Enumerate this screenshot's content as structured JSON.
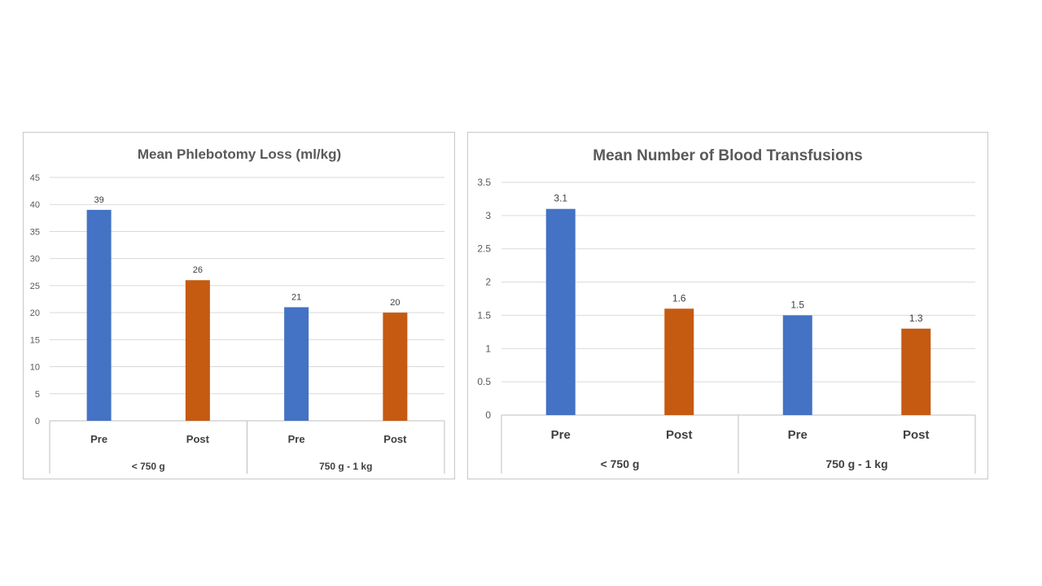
{
  "colors": {
    "pre": "#4472C4",
    "post": "#C55A11",
    "grid": "#d9d9d9",
    "axis": "#bfbfbf"
  },
  "chart_data": [
    {
      "type": "bar",
      "title": "Mean Phlebotomy Loss (ml/kg)",
      "groups": [
        "< 750 g",
        "750 g - 1 kg"
      ],
      "categories": [
        "Pre",
        "Post",
        "Pre",
        "Post"
      ],
      "values": [
        39,
        26,
        21,
        20
      ],
      "data_labels": [
        "39",
        "26",
        "21",
        "20"
      ],
      "ylim": [
        0,
        45
      ],
      "yticks": [
        "0",
        "5",
        "10",
        "15",
        "20",
        "25",
        "30",
        "35",
        "40",
        "45"
      ],
      "grid": true
    },
    {
      "type": "bar",
      "title": "Mean Number of Blood Transfusions",
      "groups": [
        "< 750 g",
        "750 g - 1 kg"
      ],
      "categories": [
        "Pre",
        "Post",
        "Pre",
        "Post"
      ],
      "values": [
        3.1,
        1.6,
        1.5,
        1.3
      ],
      "data_labels": [
        "3.1",
        "1.6",
        "1.5",
        "1.3"
      ],
      "ylim": [
        0,
        3.5
      ],
      "yticks": [
        "0",
        "0.5",
        "1",
        "1.5",
        "2",
        "2.5",
        "3",
        "3.5"
      ],
      "grid": true
    }
  ]
}
